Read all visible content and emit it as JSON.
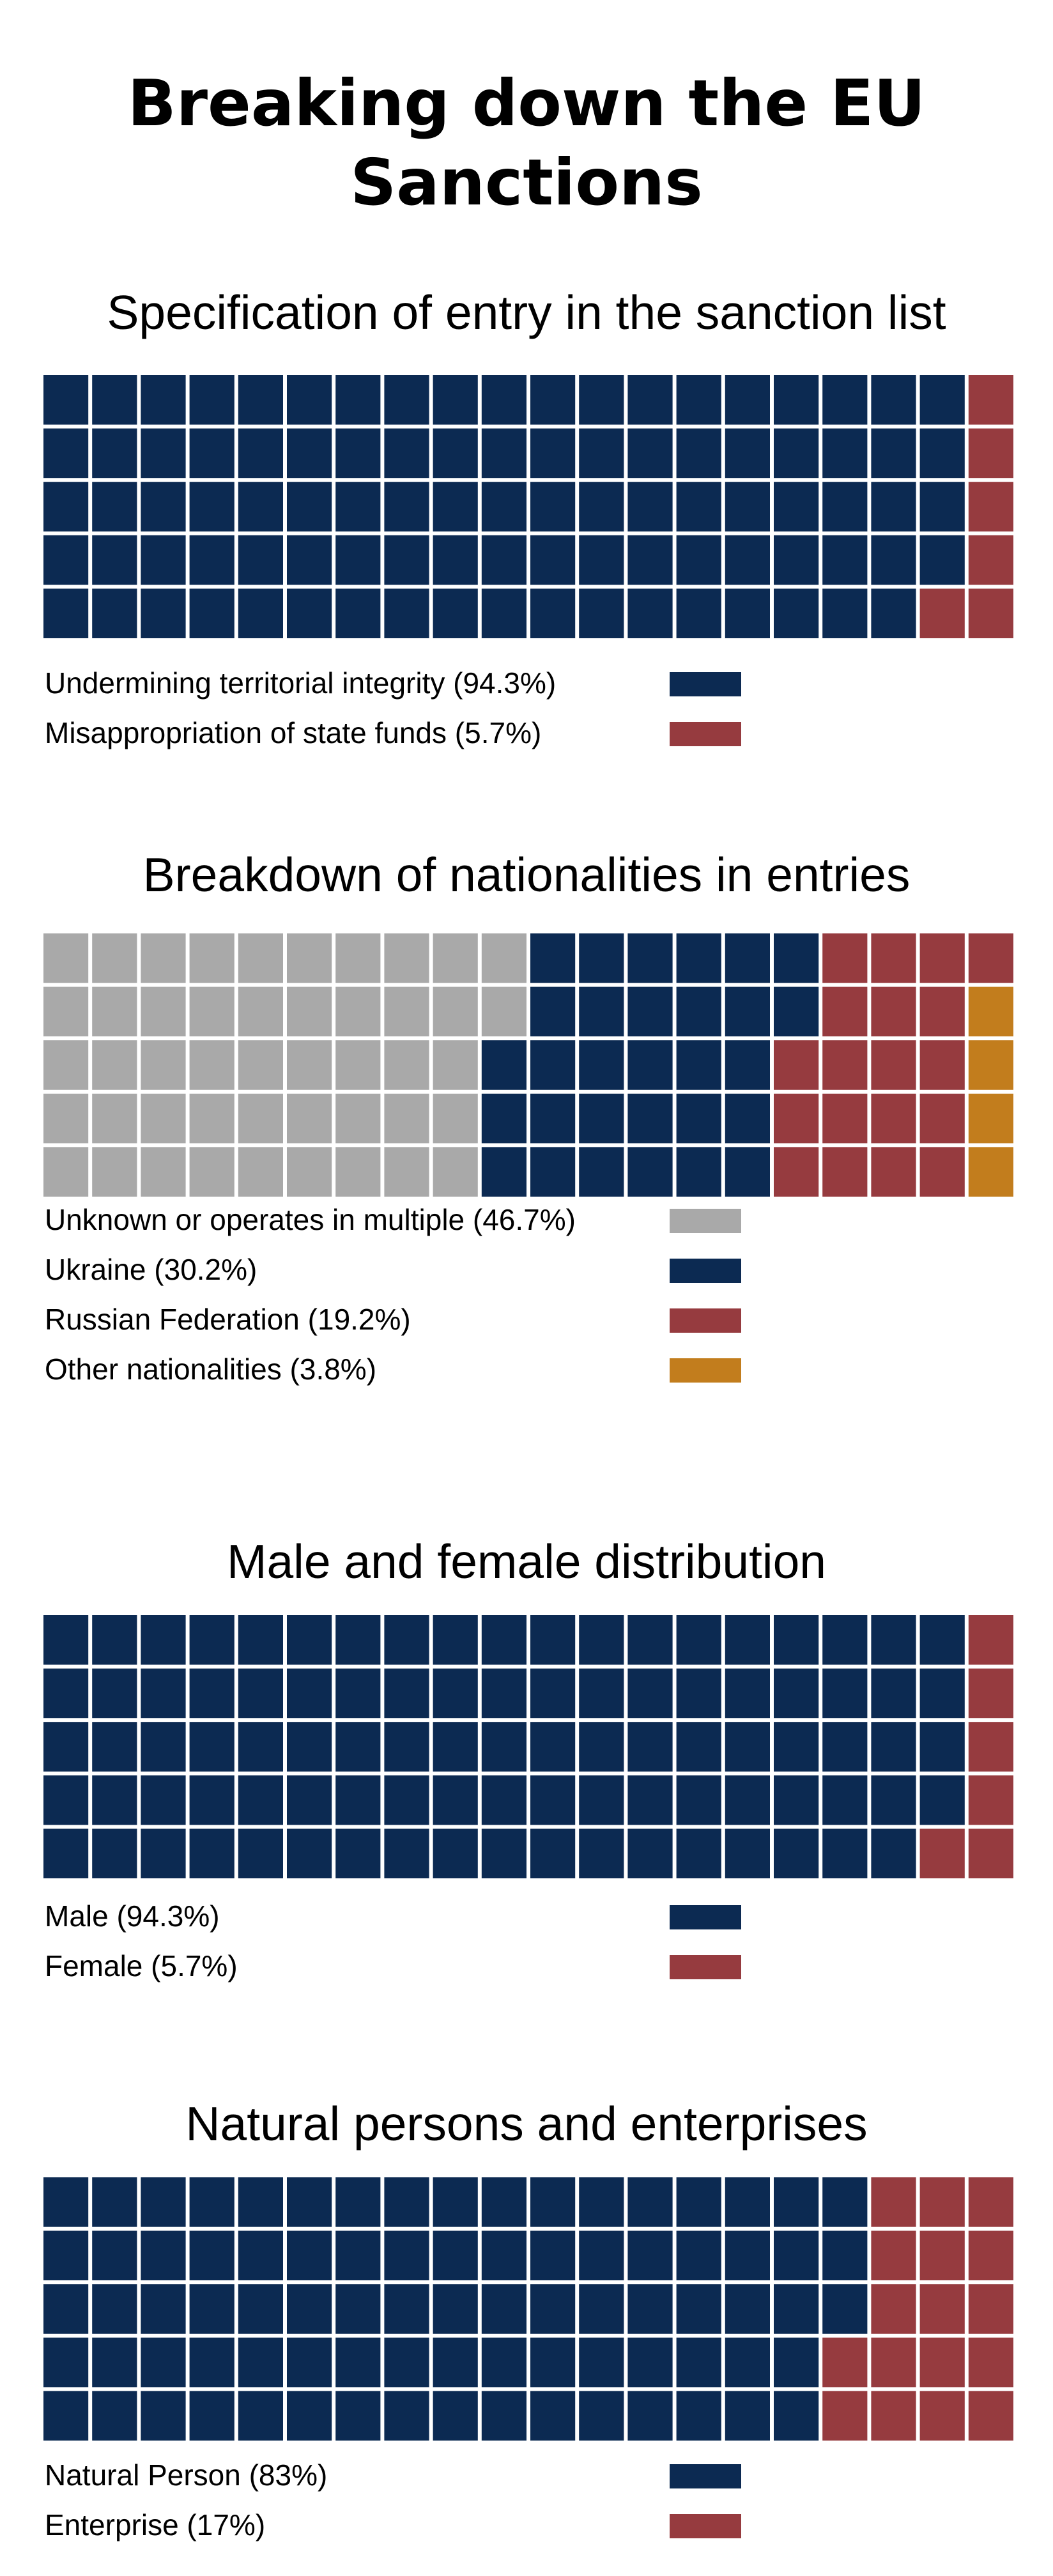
{
  "title": "Breaking down the EU Sanctions",
  "colors": {
    "navy": "#0c2a52",
    "red": "#963b3f",
    "gray": "#a9a9a9",
    "orange": "#c27d1d"
  },
  "chart_data": [
    {
      "type": "waffle",
      "title": "Specification of entry in the sanction list",
      "rows": 5,
      "cols": 20,
      "categories": [
        {
          "label": "Undermining territorial integrity (94.3%)",
          "value": 94.3,
          "color": "#0c2a52"
        },
        {
          "label": "Misappropriation of state funds (5.7%)",
          "value": 5.7,
          "color": "#963b3f"
        }
      ]
    },
    {
      "type": "waffle",
      "title": "Breakdown of nationalities in entries",
      "rows": 5,
      "cols": 20,
      "categories": [
        {
          "label": "Unknown or operates in multiple (46.7%)",
          "value": 46.7,
          "color": "#a9a9a9"
        },
        {
          "label": "Ukraine (30.2%)",
          "value": 30.2,
          "color": "#0c2a52"
        },
        {
          "label": "Russian Federation (19.2%)",
          "value": 19.2,
          "color": "#963b3f"
        },
        {
          "label": "Other nationalities (3.8%)",
          "value": 3.8,
          "color": "#c27d1d"
        }
      ]
    },
    {
      "type": "waffle",
      "title": "Male and female distribution",
      "rows": 5,
      "cols": 20,
      "categories": [
        {
          "label": "Male (94.3%)",
          "value": 94.3,
          "color": "#0c2a52"
        },
        {
          "label": "Female (5.7%)",
          "value": 5.7,
          "color": "#963b3f"
        }
      ]
    },
    {
      "type": "waffle",
      "title": "Natural persons and enterprises",
      "rows": 5,
      "cols": 20,
      "categories": [
        {
          "label": "Natural Person (83%)",
          "value": 83,
          "color": "#0c2a52"
        },
        {
          "label": "Enterprise (17%)",
          "value": 17,
          "color": "#963b3f"
        }
      ]
    }
  ]
}
